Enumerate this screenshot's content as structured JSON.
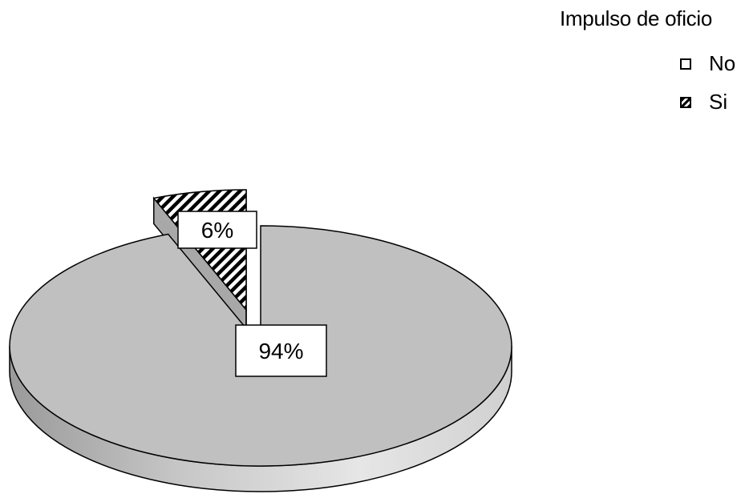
{
  "chart_data": {
    "type": "pie",
    "legend": {
      "title": "Impulso de oficio",
      "position": "top-right"
    },
    "slices": [
      {
        "label": "No",
        "value": 94,
        "display": "94%",
        "color": "#c0c0c0",
        "pattern": "solid"
      },
      {
        "label": "Si",
        "value": 6,
        "display": "6%",
        "color": "#000000",
        "pattern": "diagonal-hatch"
      }
    ],
    "exploded_slice": "Si",
    "style": "3d-pie"
  }
}
